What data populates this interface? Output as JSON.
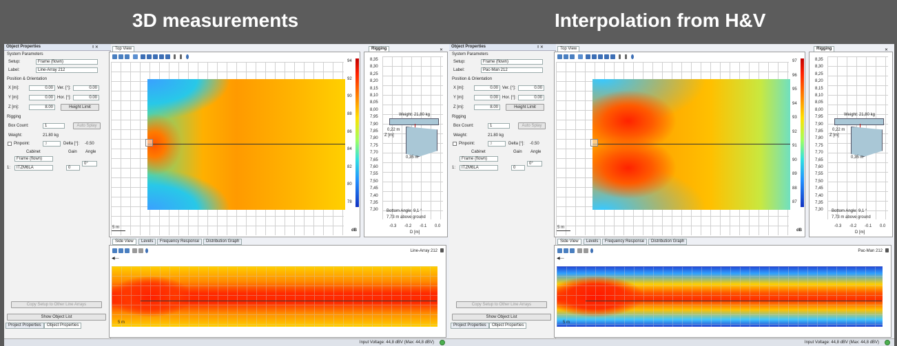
{
  "titles": {
    "left": "3D measurements",
    "right": "Interpolation from H&V"
  },
  "common": {
    "object_properties": "Object Properties",
    "pin_close": "ᵍ ✕",
    "system_parameters": "System Parameters",
    "setup_label": "Setup:",
    "setup_value": "Frame (flown)",
    "label_label": "Label:",
    "position_orientation": "Position & Orientation",
    "x_label": "X [m]:",
    "x_value": "0.00",
    "y_label": "Y [m]:",
    "y_value": "0.00",
    "z_label": "Z [m]:",
    "z_value": "8.00",
    "ver_label": "Ver. [°]:",
    "ver_value": "0.00",
    "hor_label": "Hor. [°]:",
    "hor_value": "0.00",
    "height_limit": "Height Limit",
    "rigging_section": "Rigging",
    "box_count_label": "Box Count:",
    "box_count_value": "1",
    "auto_splay": "Auto Splay",
    "weight_label": "Weight:",
    "weight_value": "21.80 kg",
    "pinpoint": "Pinpoint:",
    "pinpoint_value": "3",
    "delta_label": "Delta [°]:",
    "delta_value": "-0.50",
    "cabinet": "Cabinet",
    "gain": "Gain",
    "angle": "Angle",
    "cabinet_frame": "Frame (flown)",
    "angle_value": "0°",
    "row_index": "1:",
    "cabinet_row": "ITZM6LA",
    "gain_row": "0",
    "copy_setup": "Copy Setup to Other Line Arrays",
    "show_object_list": "Show Object List",
    "tab_project": "Project Properties",
    "tab_object": "Object Properties",
    "top_view": "Top View",
    "rigging_tab": "Rigging",
    "close_x": "✕",
    "rig_weight": "Weight: 21,80 kg",
    "rig_z": "Z [m]",
    "rig_dim": "0,35 m",
    "rig_dim_v": "0,22 m",
    "bottom_angle": "Bottom Angle: 9,1 °",
    "above_ground": "7,73 m above ground",
    "rig_xlabel": "D [m]",
    "rig_y_ticks": [
      "8,35",
      "8,30",
      "8,25",
      "8,20",
      "8,15",
      "8,10",
      "8,05",
      "8,00",
      "7,95",
      "7,90",
      "7,85",
      "7,80",
      "7,75",
      "7,70",
      "7,65",
      "7,60",
      "7,55",
      "7,50",
      "7,45",
      "7,40",
      "7,35",
      "7,30"
    ],
    "rig_x_ticks": [
      "-0.3",
      "-0.2",
      "-0.1",
      "0.0"
    ],
    "scale_5m": "5 m",
    "db_unit": "dB",
    "side_tabs": [
      "Side View",
      "Levels",
      "Frequency Response",
      "Distribution Graph"
    ],
    "input_voltage": "Input Voltage: 44,8 dBV (Max: 44,8 dBV)",
    "colors": {
      "accent": "#3a6ea5",
      "title_bg": "#5c5c5c"
    }
  },
  "left": {
    "label_value": "Line-Array 212",
    "side_name": "Line-Array 212",
    "db_ticks": [
      "94",
      "92",
      "90",
      "88",
      "86",
      "84",
      "82",
      "80",
      "78"
    ]
  },
  "right": {
    "label_value": "Pac-Man 212",
    "side_name": "Pac-Man 212",
    "db_ticks": [
      "97",
      "96",
      "95",
      "94",
      "93",
      "92",
      "91",
      "90",
      "89",
      "88",
      "87"
    ]
  }
}
